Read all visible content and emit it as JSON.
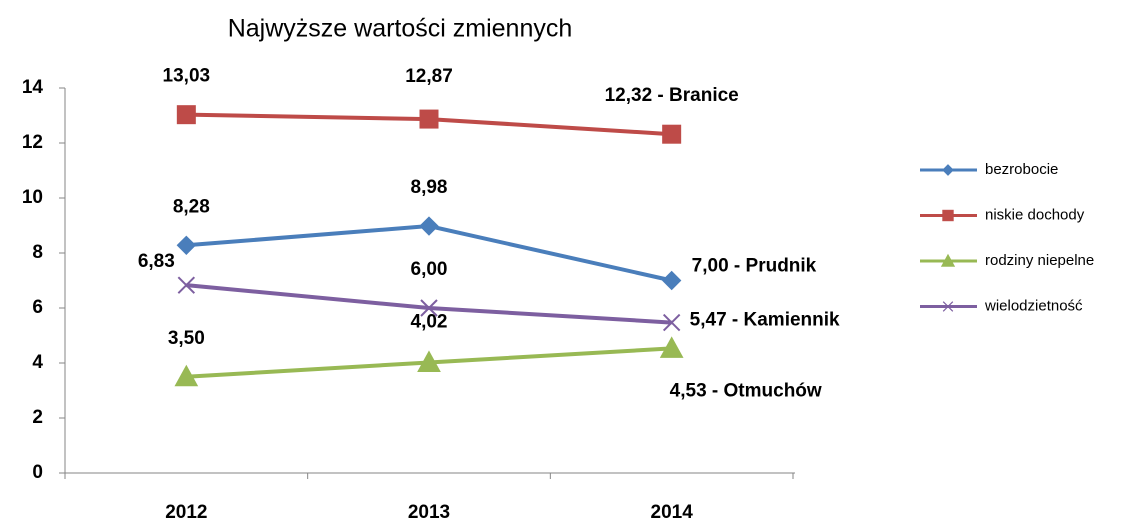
{
  "chart_data": {
    "type": "line",
    "title": "Najwyższe wartości zmiennych",
    "categories": [
      "2012",
      "2013",
      "2014"
    ],
    "series": [
      {
        "name": "bezrobocie",
        "color": "#4a7ebb",
        "marker": "diamond",
        "values": [
          8.28,
          8.98,
          7.0
        ],
        "value_labels": [
          "8,28",
          "8,98",
          "7,00 - Prudnik"
        ]
      },
      {
        "name": "niskie dochody",
        "color": "#be4b48",
        "marker": "square",
        "values": [
          13.03,
          12.87,
          12.32
        ],
        "value_labels": [
          "13,03",
          "12,87",
          "12,32 - Branice"
        ]
      },
      {
        "name": "rodziny niepelne",
        "color": "#98b954",
        "marker": "triangle",
        "values": [
          3.5,
          4.02,
          4.53
        ],
        "value_labels": [
          "3,50",
          "4,02",
          "4,53 - Otmuchów"
        ]
      },
      {
        "name": "wielodzietność",
        "color": "#7d5fa0",
        "marker": "x",
        "values": [
          6.83,
          6.0,
          5.47
        ],
        "value_labels": [
          "6,83",
          "6,00",
          "5,47 - Kamiennik"
        ]
      }
    ],
    "ylim": [
      0,
      14
    ],
    "yticks": [
      0,
      2,
      4,
      6,
      8,
      10,
      12,
      14
    ],
    "grid": false,
    "legend": "right"
  }
}
